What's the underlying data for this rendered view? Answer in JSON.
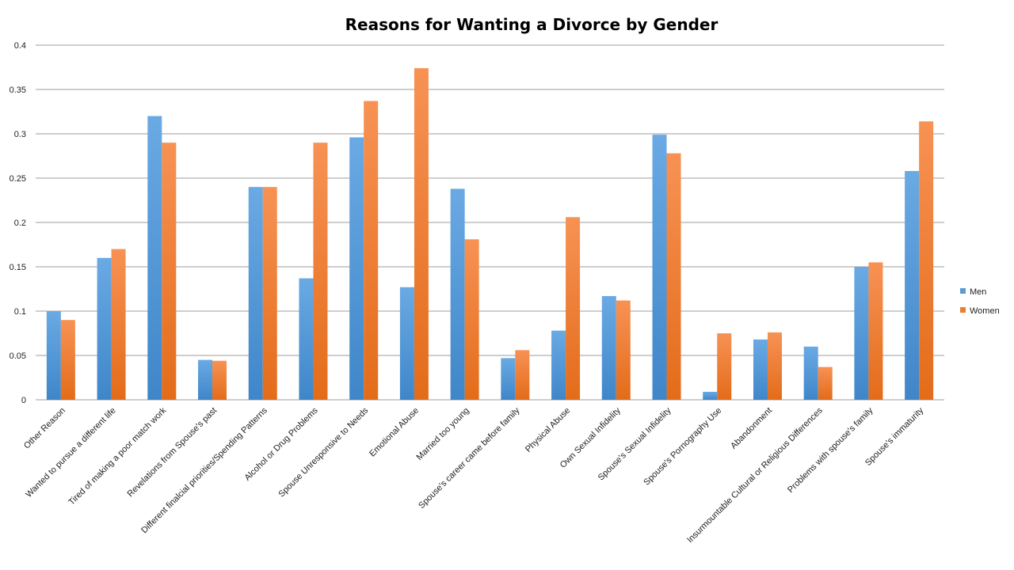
{
  "chart_data": {
    "type": "bar",
    "title": "Reasons for Wanting a Divorce by Gender",
    "xlabel": "",
    "ylabel": "",
    "ylim": [
      0,
      0.4
    ],
    "yticks": [
      "0",
      "0.05",
      "0.1",
      "0.15",
      "0.2",
      "0.25",
      "0.3",
      "0.35",
      "0.4"
    ],
    "grid": true,
    "legend_position": "right",
    "categories": [
      "Other Reason",
      "Wanted to pursue a different life",
      "Tired of making a poor match work",
      "Revelations from Spouse's past",
      "Different finalcial priorities/Spending Patterns",
      "Alcohol or Drug Problems",
      "Spouse Unresponsive to Needs",
      "Emotional Abuse",
      "Married too young",
      "Spouse's career came before family",
      "Physical Abuse",
      "Own Sexual Infidelity",
      "Spouse's Sexual Infidelity",
      "Spouse's Pornography Use",
      "Abandonment",
      "Insurmountable Cultural or Religious Differences",
      "Problems with spouse's family",
      "Spouse's immaturity"
    ],
    "series": [
      {
        "name": "Men",
        "color": "#5b9bd5",
        "values": [
          0.1,
          0.16,
          0.32,
          0.045,
          0.24,
          0.137,
          0.296,
          0.127,
          0.238,
          0.047,
          0.078,
          0.117,
          0.299,
          0.009,
          0.068,
          0.06,
          0.15,
          0.258
        ]
      },
      {
        "name": "Women",
        "color": "#ed7d31",
        "values": [
          0.09,
          0.17,
          0.29,
          0.044,
          0.24,
          0.29,
          0.337,
          0.374,
          0.181,
          0.056,
          0.206,
          0.112,
          0.278,
          0.075,
          0.076,
          0.037,
          0.155,
          0.314
        ]
      }
    ]
  }
}
